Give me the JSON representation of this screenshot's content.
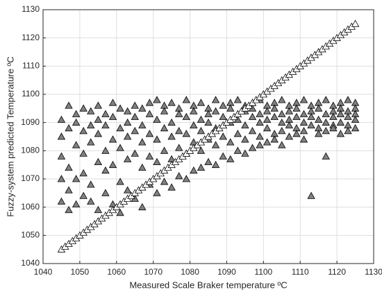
{
  "chart_data": {
    "type": "scatter",
    "xlabel": "Measured Scale Braker temperature ºC",
    "ylabel": "Fuzzy-system predicted Temperature ºC",
    "xlim": [
      1040,
      1130
    ],
    "ylim": [
      1040,
      1130
    ],
    "xticks": [
      1040,
      1050,
      1060,
      1070,
      1080,
      1090,
      1100,
      1110,
      1120,
      1130
    ],
    "yticks": [
      1040,
      1050,
      1060,
      1070,
      1080,
      1090,
      1100,
      1110,
      1120,
      1130
    ],
    "grid": true,
    "marker": "triangle",
    "series": [
      {
        "color": "#808080",
        "x": [
          1045,
          1045,
          1045,
          1045,
          1045,
          1047,
          1047,
          1047,
          1047,
          1047,
          1049,
          1049,
          1049,
          1049,
          1049,
          1051,
          1051,
          1051,
          1051,
          1051,
          1053,
          1053,
          1053,
          1053,
          1053,
          1055,
          1055,
          1055,
          1055,
          1055,
          1057,
          1057,
          1057,
          1057,
          1057,
          1059,
          1059,
          1059,
          1059,
          1059,
          1061,
          1061,
          1061,
          1061,
          1061,
          1063,
          1063,
          1063,
          1063,
          1063,
          1065,
          1065,
          1065,
          1065,
          1065,
          1067,
          1067,
          1067,
          1067,
          1067,
          1069,
          1069,
          1069,
          1069,
          1069,
          1071,
          1071,
          1071,
          1071,
          1071,
          1073,
          1073,
          1073,
          1073,
          1073,
          1075,
          1075,
          1075,
          1075,
          1075,
          1077,
          1077,
          1077,
          1077,
          1077,
          1079,
          1079,
          1079,
          1079,
          1079,
          1081,
          1081,
          1081,
          1081,
          1081,
          1083,
          1083,
          1083,
          1083,
          1083,
          1085,
          1085,
          1085,
          1085,
          1085,
          1087,
          1087,
          1087,
          1087,
          1087,
          1089,
          1089,
          1089,
          1089,
          1089,
          1091,
          1091,
          1091,
          1091,
          1091,
          1093,
          1093,
          1093,
          1093,
          1093,
          1095,
          1095,
          1095,
          1095,
          1095,
          1097,
          1097,
          1097,
          1097,
          1097,
          1099,
          1099,
          1099,
          1099,
          1099,
          1101,
          1101,
          1101,
          1101,
          1101,
          1103,
          1103,
          1103,
          1103,
          1103,
          1105,
          1105,
          1105,
          1105,
          1105,
          1107,
          1107,
          1107,
          1107,
          1107,
          1109,
          1109,
          1109,
          1109,
          1109,
          1111,
          1111,
          1111,
          1111,
          1111,
          1113,
          1113,
          1113,
          1113,
          1113,
          1115,
          1115,
          1115,
          1115,
          1115,
          1117,
          1117,
          1117,
          1117,
          1117,
          1119,
          1119,
          1119,
          1119,
          1119,
          1121,
          1121,
          1121,
          1121,
          1121,
          1123,
          1123,
          1123,
          1123,
          1123,
          1125,
          1125,
          1125,
          1125,
          1125
        ],
        "y": [
          1091,
          1085,
          1078,
          1070,
          1062,
          1096,
          1088,
          1074,
          1066,
          1059,
          1093,
          1082,
          1090,
          1070,
          1061,
          1095,
          1087,
          1079,
          1072,
          1064,
          1094,
          1089,
          1083,
          1068,
          1062,
          1096,
          1091,
          1086,
          1076,
          1059,
          1093,
          1089,
          1080,
          1073,
          1065,
          1097,
          1092,
          1084,
          1075,
          1061,
          1095,
          1088,
          1081,
          1069,
          1058,
          1094,
          1090,
          1085,
          1077,
          1066,
          1096,
          1092,
          1087,
          1079,
          1063,
          1095,
          1089,
          1083,
          1074,
          1060,
          1097,
          1093,
          1086,
          1078,
          1068,
          1098,
          1091,
          1084,
          1076,
          1065,
          1096,
          1094,
          1088,
          1080,
          1069,
          1097,
          1090,
          1085,
          1077,
          1067,
          1095,
          1093,
          1087,
          1081,
          1071,
          1098,
          1092,
          1086,
          1079,
          1070,
          1096,
          1094,
          1089,
          1083,
          1073,
          1097,
          1091,
          1087,
          1080,
          1074,
          1095,
          1093,
          1090,
          1084,
          1076,
          1098,
          1094,
          1088,
          1082,
          1075,
          1096,
          1092,
          1089,
          1085,
          1078,
          1097,
          1095,
          1090,
          1083,
          1077,
          1098,
          1093,
          1091,
          1086,
          1080,
          1096,
          1094,
          1089,
          1084,
          1079,
          1097,
          1095,
          1092,
          1087,
          1081,
          1098,
          1093,
          1090,
          1085,
          1082,
          1096,
          1094,
          1091,
          1088,
          1083,
          1097,
          1095,
          1092,
          1086,
          1084,
          1098,
          1093,
          1090,
          1087,
          1082,
          1096,
          1094,
          1091,
          1089,
          1085,
          1097,
          1095,
          1092,
          1088,
          1086,
          1098,
          1093,
          1090,
          1087,
          1084,
          1096,
          1094,
          1092,
          1089,
          1064,
          1097,
          1095,
          1091,
          1088,
          1086,
          1098,
          1093,
          1090,
          1078,
          1087,
          1096,
          1094,
          1092,
          1089,
          1088,
          1097,
          1095,
          1093,
          1090,
          1086,
          1098,
          1094,
          1092,
          1089,
          1087,
          1097,
          1095,
          1093,
          1091,
          1088
        ]
      },
      {
        "color": "#ffffff",
        "x": [
          1045,
          1046,
          1047,
          1048,
          1049,
          1050,
          1051,
          1052,
          1053,
          1054,
          1055,
          1056,
          1057,
          1058,
          1059,
          1060,
          1061,
          1062,
          1063,
          1064,
          1065,
          1066,
          1067,
          1068,
          1069,
          1070,
          1071,
          1072,
          1073,
          1074,
          1075,
          1076,
          1077,
          1078,
          1079,
          1080,
          1081,
          1082,
          1083,
          1084,
          1085,
          1086,
          1087,
          1088,
          1089,
          1090,
          1091,
          1092,
          1093,
          1094,
          1095,
          1096,
          1097,
          1098,
          1099,
          1100,
          1101,
          1102,
          1103,
          1104,
          1105,
          1106,
          1107,
          1108,
          1109,
          1110,
          1111,
          1112,
          1113,
          1114,
          1115,
          1116,
          1117,
          1118,
          1119,
          1120,
          1121,
          1122,
          1123,
          1124,
          1125
        ],
        "y": [
          1045,
          1046,
          1047,
          1048,
          1049,
          1050,
          1051,
          1052,
          1053,
          1054,
          1055,
          1056,
          1057,
          1058,
          1059,
          1060,
          1061,
          1062,
          1063,
          1064,
          1065,
          1066,
          1067,
          1068,
          1069,
          1070,
          1071,
          1072,
          1073,
          1074,
          1075,
          1076,
          1077,
          1078,
          1079,
          1080,
          1081,
          1082,
          1083,
          1084,
          1085,
          1086,
          1087,
          1088,
          1089,
          1090,
          1091,
          1092,
          1093,
          1094,
          1095,
          1096,
          1097,
          1098,
          1099,
          1100,
          1101,
          1102,
          1103,
          1104,
          1105,
          1106,
          1107,
          1108,
          1109,
          1110,
          1111,
          1112,
          1113,
          1114,
          1115,
          1116,
          1117,
          1118,
          1119,
          1120,
          1121,
          1122,
          1123,
          1124,
          1125
        ]
      }
    ]
  }
}
